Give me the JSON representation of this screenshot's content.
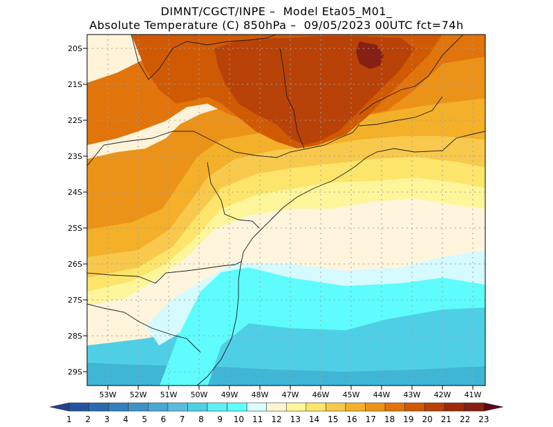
{
  "title": {
    "line1": "DIMNT/CGCT/INPE –  Model Eta05_M01_",
    "line2": "Absolute Temperature (C) 850hPa –  09/05/2023 00UTC fct=74h"
  },
  "axes": {
    "lat_labels": [
      "20S",
      "21S",
      "22S",
      "23S",
      "24S",
      "25S",
      "26S",
      "27S",
      "28S",
      "29S"
    ],
    "lon_labels": [
      "53W",
      "52W",
      "51W",
      "50W",
      "49W",
      "48W",
      "47W",
      "46W",
      "45W",
      "44W",
      "43W",
      "42W",
      "41W"
    ]
  },
  "colorbar": {
    "labels": [
      "1",
      "2",
      "3",
      "4",
      "5",
      "6",
      "7",
      "8",
      "9",
      "10",
      "11",
      "12",
      "13",
      "14",
      "15",
      "16",
      "17",
      "18",
      "19",
      "20",
      "21",
      "22",
      "23"
    ],
    "colors": [
      "#1f3f8f",
      "#23559f",
      "#2a6aae",
      "#3380bb",
      "#3e93c6",
      "#4ba7d3",
      "#5cbce0",
      "#4fd0e6",
      "#5ef0f7",
      "#5fffff",
      "#d9ffff",
      "#fff5d6",
      "#fff59a",
      "#fde56b",
      "#f8c94c",
      "#f3b028",
      "#eb9318",
      "#e1740a",
      "#d05a04",
      "#b84208",
      "#9e2a08",
      "#862014",
      "#5e0518"
    ]
  },
  "fields": {
    "background": "#fff3da",
    "regions": [
      {
        "name": "region-cold-south",
        "color": "#3fb6d6"
      },
      {
        "name": "region-cool-ocean",
        "color": "#4fcfe6"
      },
      {
        "name": "region-cyan-plume",
        "color": "#5efcfc"
      },
      {
        "name": "region-light-cyan",
        "color": "#d5faff"
      },
      {
        "name": "region-cream",
        "color": "#fff5dc"
      },
      {
        "name": "region-pale-yellow",
        "color": "#fff59a"
      },
      {
        "name": "region-light-yellow",
        "color": "#fde56b"
      },
      {
        "name": "region-yellow-orange",
        "color": "#f8c94c"
      },
      {
        "name": "region-orange",
        "color": "#f3b028"
      },
      {
        "name": "region-dark-orange",
        "color": "#eb9318"
      },
      {
        "name": "region-red-orange",
        "color": "#e1740a"
      },
      {
        "name": "region-rust",
        "color": "#d05a04"
      },
      {
        "name": "region-dark-rust",
        "color": "#b84208"
      },
      {
        "name": "region-maroon",
        "color": "#862014"
      }
    ]
  }
}
